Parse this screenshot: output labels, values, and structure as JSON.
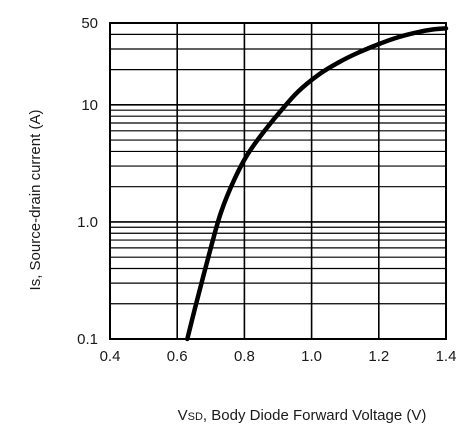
{
  "chart_data": {
    "type": "line",
    "title": "",
    "xlabel": {
      "prefix": "V",
      "subscript": "SD",
      "suffix": ", Body Diode Forward Voltage (V)"
    },
    "ylabel": "Is, Source-drain current (A)",
    "x_scale": "linear",
    "y_scale": "log",
    "xlim": [
      0.4,
      1.4
    ],
    "ylim": [
      0.1,
      50
    ],
    "x_ticks": [
      {
        "value": 0.4,
        "label": "0.4"
      },
      {
        "value": 0.6,
        "label": "0.6"
      },
      {
        "value": 0.8,
        "label": "0.8"
      },
      {
        "value": 1.0,
        "label": "1.0"
      },
      {
        "value": 1.2,
        "label": "1.2"
      },
      {
        "value": 1.4,
        "label": "1.4"
      }
    ],
    "y_ticks": [
      {
        "value": 0.1,
        "label": "0.1"
      },
      {
        "value": 1.0,
        "label": "1.0"
      },
      {
        "value": 10,
        "label": "10"
      },
      {
        "value": 50,
        "label": "50"
      }
    ],
    "grid": true,
    "series": [
      {
        "x": [
          0.63,
          0.66,
          0.7,
          0.73,
          0.77,
          0.81,
          0.86,
          0.91,
          0.96,
          1.02,
          1.08,
          1.14,
          1.2,
          1.26,
          1.32,
          1.36,
          1.4
        ],
        "y": [
          0.1,
          0.22,
          0.6,
          1.2,
          2.3,
          3.8,
          6.0,
          9.0,
          13.0,
          18.0,
          23.0,
          28.0,
          33.0,
          38.0,
          42.0,
          44.0,
          45.0
        ]
      }
    ]
  }
}
